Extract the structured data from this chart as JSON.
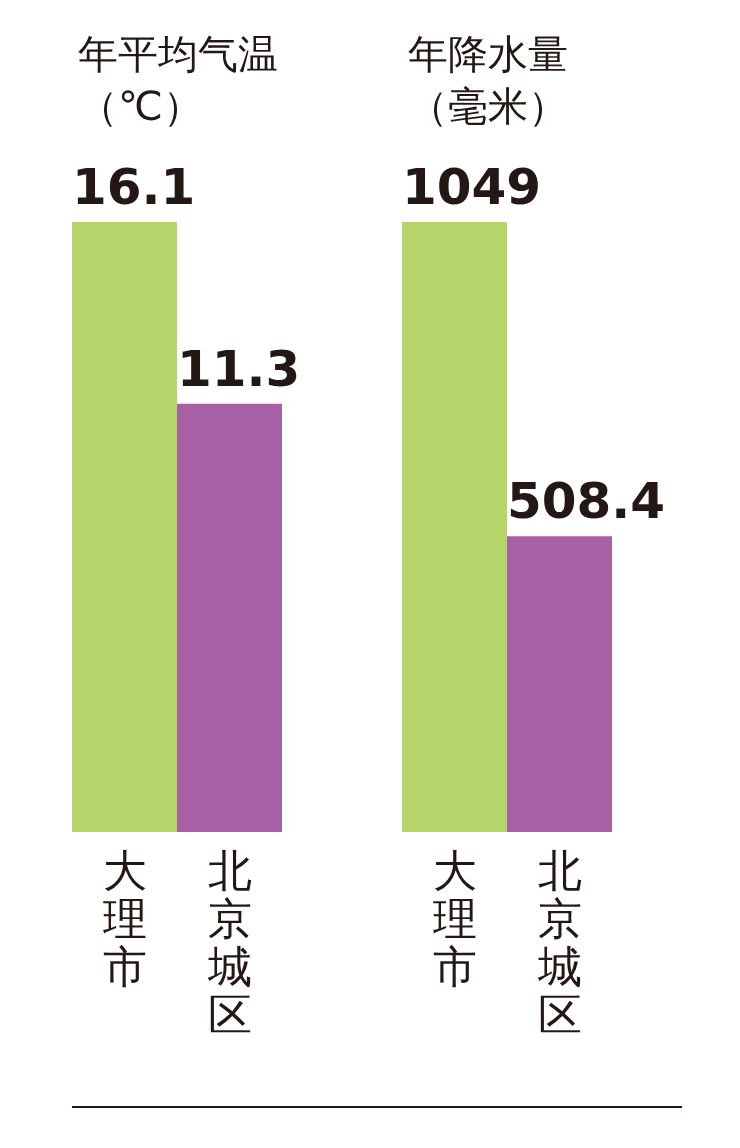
{
  "chart_data": [
    {
      "type": "bar",
      "title": "年平均气温",
      "subtitle": "（℃）",
      "categories": [
        "大理市",
        "北京城区"
      ],
      "values": [
        16.1,
        11.3
      ],
      "colors": [
        "#b5d56a",
        "#a860a5"
      ],
      "data_labels": true
    },
    {
      "type": "bar",
      "title": "年降水量",
      "subtitle": "（毫米）",
      "categories": [
        "大理市",
        "北京城区"
      ],
      "values": [
        1049,
        508.4
      ],
      "colors": [
        "#b5d56a",
        "#a860a5"
      ],
      "data_labels": true
    }
  ]
}
